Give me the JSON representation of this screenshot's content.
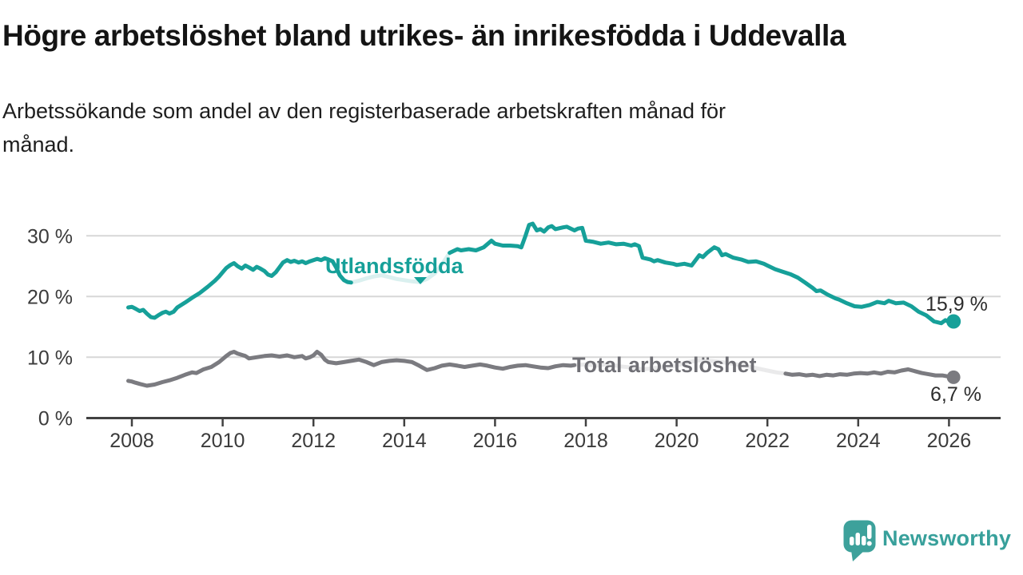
{
  "title": "Högre arbetslöshet bland utrikes- än inrikesfödda i Uddevalla",
  "subtitle": "Arbetssökande som andel av den registerbaserade arbetskraften månad för\nmånad.",
  "branding": {
    "logo_text": "Newsworthy"
  },
  "chart_data": {
    "type": "line",
    "unit": "%",
    "grid": "horizontal",
    "ylim": [
      0,
      33
    ],
    "xlim": [
      2007.9,
      2027.1
    ],
    "y_ticks": [
      {
        "value": 30,
        "label": "30 %"
      },
      {
        "value": 20,
        "label": "20 %"
      },
      {
        "value": 10,
        "label": "10 %"
      },
      {
        "value": 0,
        "label": "0 %"
      }
    ],
    "x_ticks": [
      {
        "value": 2008,
        "label": "2008"
      },
      {
        "value": 2010,
        "label": "2010"
      },
      {
        "value": 2012,
        "label": "2012"
      },
      {
        "value": 2014,
        "label": "2014"
      },
      {
        "value": 2016,
        "label": "2016"
      },
      {
        "value": 2018,
        "label": "2018"
      },
      {
        "value": 2020,
        "label": "2020"
      },
      {
        "value": 2022,
        "label": "2022"
      },
      {
        "value": 2024,
        "label": "2024"
      },
      {
        "value": 2026,
        "label": "2026"
      }
    ],
    "series": [
      {
        "name": "Utlandsfödda",
        "color": "#16a099",
        "end_label": "15,9 %",
        "end_value": 15.9,
        "dot_radius": 9,
        "label_gap_years": [
          2012.85,
          2015.0
        ],
        "points": [
          [
            2007.92,
            18.2
          ],
          [
            2008.0,
            18.3
          ],
          [
            2008.08,
            18.0
          ],
          [
            2008.17,
            17.6
          ],
          [
            2008.25,
            17.8
          ],
          [
            2008.33,
            17.2
          ],
          [
            2008.42,
            16.6
          ],
          [
            2008.5,
            16.5
          ],
          [
            2008.58,
            16.9
          ],
          [
            2008.67,
            17.3
          ],
          [
            2008.75,
            17.5
          ],
          [
            2008.83,
            17.2
          ],
          [
            2008.92,
            17.5
          ],
          [
            2009.0,
            18.2
          ],
          [
            2009.17,
            19.0
          ],
          [
            2009.33,
            19.8
          ],
          [
            2009.5,
            20.6
          ],
          [
            2009.67,
            21.6
          ],
          [
            2009.83,
            22.6
          ],
          [
            2009.92,
            23.3
          ],
          [
            2010.0,
            24.0
          ],
          [
            2010.08,
            24.7
          ],
          [
            2010.17,
            25.2
          ],
          [
            2010.25,
            25.5
          ],
          [
            2010.33,
            25.0
          ],
          [
            2010.42,
            24.6
          ],
          [
            2010.5,
            25.1
          ],
          [
            2010.58,
            24.8
          ],
          [
            2010.67,
            24.4
          ],
          [
            2010.75,
            24.9
          ],
          [
            2010.83,
            24.6
          ],
          [
            2010.92,
            24.2
          ],
          [
            2011.0,
            23.6
          ],
          [
            2011.08,
            23.4
          ],
          [
            2011.17,
            24.0
          ],
          [
            2011.25,
            24.8
          ],
          [
            2011.33,
            25.6
          ],
          [
            2011.42,
            26.0
          ],
          [
            2011.5,
            25.7
          ],
          [
            2011.58,
            25.9
          ],
          [
            2011.67,
            25.6
          ],
          [
            2011.75,
            25.8
          ],
          [
            2011.83,
            25.5
          ],
          [
            2011.92,
            25.8
          ],
          [
            2012.0,
            26.0
          ],
          [
            2012.08,
            26.2
          ],
          [
            2012.17,
            26.0
          ],
          [
            2012.25,
            26.3
          ],
          [
            2012.33,
            26.1
          ],
          [
            2012.42,
            25.8
          ],
          [
            2012.5,
            24.8
          ],
          [
            2012.58,
            23.5
          ],
          [
            2012.67,
            22.7
          ],
          [
            2012.75,
            22.4
          ],
          [
            2012.83,
            22.3
          ],
          [
            2013.0,
            22.6
          ],
          [
            2013.17,
            23.0
          ],
          [
            2013.33,
            23.3
          ],
          [
            2013.5,
            23.5
          ],
          [
            2013.67,
            23.2
          ],
          [
            2013.83,
            22.9
          ],
          [
            2014.0,
            22.7
          ],
          [
            2014.17,
            22.5
          ],
          [
            2014.33,
            22.4
          ],
          [
            2014.5,
            22.9
          ],
          [
            2014.67,
            23.8
          ],
          [
            2014.83,
            25.3
          ],
          [
            2014.92,
            26.3
          ],
          [
            2015.0,
            27.2
          ],
          [
            2015.17,
            27.8
          ],
          [
            2015.25,
            27.6
          ],
          [
            2015.42,
            27.8
          ],
          [
            2015.58,
            27.6
          ],
          [
            2015.75,
            28.1
          ],
          [
            2015.92,
            29.2
          ],
          [
            2016.0,
            28.7
          ],
          [
            2016.17,
            28.4
          ],
          [
            2016.33,
            28.4
          ],
          [
            2016.5,
            28.3
          ],
          [
            2016.58,
            28.1
          ],
          [
            2016.67,
            30.0
          ],
          [
            2016.75,
            31.8
          ],
          [
            2016.83,
            32.0
          ],
          [
            2016.92,
            30.9
          ],
          [
            2017.0,
            31.1
          ],
          [
            2017.08,
            30.7
          ],
          [
            2017.17,
            31.4
          ],
          [
            2017.25,
            31.6
          ],
          [
            2017.33,
            31.1
          ],
          [
            2017.5,
            31.4
          ],
          [
            2017.58,
            31.5
          ],
          [
            2017.75,
            30.9
          ],
          [
            2017.83,
            31.2
          ],
          [
            2017.92,
            31.3
          ],
          [
            2018.0,
            29.2
          ],
          [
            2018.17,
            29.0
          ],
          [
            2018.33,
            28.7
          ],
          [
            2018.5,
            28.9
          ],
          [
            2018.67,
            28.6
          ],
          [
            2018.83,
            28.7
          ],
          [
            2019.0,
            28.4
          ],
          [
            2019.08,
            28.6
          ],
          [
            2019.17,
            28.3
          ],
          [
            2019.25,
            26.4
          ],
          [
            2019.42,
            26.1
          ],
          [
            2019.5,
            25.8
          ],
          [
            2019.58,
            26.0
          ],
          [
            2019.75,
            25.6
          ],
          [
            2019.92,
            25.4
          ],
          [
            2020.0,
            25.2
          ],
          [
            2020.17,
            25.4
          ],
          [
            2020.33,
            25.1
          ],
          [
            2020.5,
            26.8
          ],
          [
            2020.58,
            26.5
          ],
          [
            2020.67,
            27.2
          ],
          [
            2020.83,
            28.1
          ],
          [
            2020.92,
            27.8
          ],
          [
            2021.0,
            26.8
          ],
          [
            2021.08,
            27.0
          ],
          [
            2021.25,
            26.4
          ],
          [
            2021.42,
            26.1
          ],
          [
            2021.58,
            25.7
          ],
          [
            2021.75,
            25.8
          ],
          [
            2021.92,
            25.4
          ],
          [
            2022.0,
            25.1
          ],
          [
            2022.17,
            24.5
          ],
          [
            2022.33,
            24.1
          ],
          [
            2022.5,
            23.7
          ],
          [
            2022.67,
            23.1
          ],
          [
            2022.83,
            22.3
          ],
          [
            2023.0,
            21.4
          ],
          [
            2023.08,
            20.9
          ],
          [
            2023.17,
            21.0
          ],
          [
            2023.33,
            20.3
          ],
          [
            2023.5,
            19.7
          ],
          [
            2023.58,
            19.5
          ],
          [
            2023.75,
            18.9
          ],
          [
            2023.92,
            18.4
          ],
          [
            2024.08,
            18.3
          ],
          [
            2024.25,
            18.6
          ],
          [
            2024.42,
            19.1
          ],
          [
            2024.58,
            18.9
          ],
          [
            2024.67,
            19.3
          ],
          [
            2024.83,
            18.9
          ],
          [
            2025.0,
            19.0
          ],
          [
            2025.17,
            18.4
          ],
          [
            2025.33,
            17.5
          ],
          [
            2025.5,
            16.9
          ],
          [
            2025.67,
            15.9
          ],
          [
            2025.83,
            15.6
          ],
          [
            2025.92,
            16.1
          ],
          [
            2026.0,
            15.8
          ],
          [
            2026.1,
            15.9
          ]
        ]
      },
      {
        "name": "Total arbetslöshet",
        "color": "#7b7b80",
        "end_label": "6,7 %",
        "end_value": 6.7,
        "dot_radius": 8.5,
        "label_gap_years": [
          2017.76,
          2022.38
        ],
        "points": [
          [
            2007.92,
            6.1
          ],
          [
            2008.0,
            6.0
          ],
          [
            2008.08,
            5.8
          ],
          [
            2008.17,
            5.6
          ],
          [
            2008.33,
            5.3
          ],
          [
            2008.5,
            5.5
          ],
          [
            2008.67,
            5.9
          ],
          [
            2008.83,
            6.2
          ],
          [
            2009.0,
            6.6
          ],
          [
            2009.17,
            7.1
          ],
          [
            2009.33,
            7.5
          ],
          [
            2009.42,
            7.4
          ],
          [
            2009.58,
            8.0
          ],
          [
            2009.75,
            8.4
          ],
          [
            2009.92,
            9.2
          ],
          [
            2010.0,
            9.7
          ],
          [
            2010.08,
            10.2
          ],
          [
            2010.17,
            10.7
          ],
          [
            2010.25,
            10.9
          ],
          [
            2010.33,
            10.6
          ],
          [
            2010.5,
            10.2
          ],
          [
            2010.58,
            9.8
          ],
          [
            2010.75,
            10.0
          ],
          [
            2010.92,
            10.2
          ],
          [
            2011.08,
            10.3
          ],
          [
            2011.25,
            10.1
          ],
          [
            2011.42,
            10.3
          ],
          [
            2011.58,
            10.0
          ],
          [
            2011.75,
            10.2
          ],
          [
            2011.83,
            9.8
          ],
          [
            2011.92,
            10.0
          ],
          [
            2012.0,
            10.3
          ],
          [
            2012.08,
            10.9
          ],
          [
            2012.17,
            10.4
          ],
          [
            2012.25,
            9.6
          ],
          [
            2012.33,
            9.2
          ],
          [
            2012.5,
            9.0
          ],
          [
            2012.67,
            9.2
          ],
          [
            2012.83,
            9.4
          ],
          [
            2013.0,
            9.6
          ],
          [
            2013.17,
            9.2
          ],
          [
            2013.33,
            8.7
          ],
          [
            2013.5,
            9.2
          ],
          [
            2013.67,
            9.4
          ],
          [
            2013.83,
            9.5
          ],
          [
            2014.0,
            9.4
          ],
          [
            2014.17,
            9.2
          ],
          [
            2014.33,
            8.6
          ],
          [
            2014.5,
            7.9
          ],
          [
            2014.67,
            8.2
          ],
          [
            2014.83,
            8.6
          ],
          [
            2015.0,
            8.8
          ],
          [
            2015.17,
            8.6
          ],
          [
            2015.33,
            8.4
          ],
          [
            2015.5,
            8.6
          ],
          [
            2015.67,
            8.8
          ],
          [
            2015.83,
            8.6
          ],
          [
            2016.0,
            8.3
          ],
          [
            2016.17,
            8.1
          ],
          [
            2016.33,
            8.4
          ],
          [
            2016.5,
            8.6
          ],
          [
            2016.67,
            8.7
          ],
          [
            2016.83,
            8.5
          ],
          [
            2017.0,
            8.3
          ],
          [
            2017.17,
            8.2
          ],
          [
            2017.33,
            8.5
          ],
          [
            2017.5,
            8.7
          ],
          [
            2017.67,
            8.6
          ],
          [
            2017.75,
            8.7
          ],
          [
            2018.0,
            8.8
          ],
          [
            2018.25,
            8.6
          ],
          [
            2018.5,
            8.9
          ],
          [
            2018.75,
            8.5
          ],
          [
            2019.0,
            8.3
          ],
          [
            2019.25,
            8.0
          ],
          [
            2019.5,
            8.2
          ],
          [
            2019.75,
            8.4
          ],
          [
            2020.0,
            8.6
          ],
          [
            2020.25,
            9.2
          ],
          [
            2020.5,
            9.5
          ],
          [
            2020.75,
            9.4
          ],
          [
            2021.0,
            9.2
          ],
          [
            2021.25,
            8.9
          ],
          [
            2021.5,
            8.6
          ],
          [
            2021.75,
            8.2
          ],
          [
            2022.0,
            7.8
          ],
          [
            2022.2,
            7.5
          ],
          [
            2022.4,
            7.3
          ],
          [
            2022.55,
            7.1
          ],
          [
            2022.7,
            7.2
          ],
          [
            2022.85,
            7.0
          ],
          [
            2023.0,
            7.1
          ],
          [
            2023.15,
            6.9
          ],
          [
            2023.3,
            7.1
          ],
          [
            2023.45,
            7.0
          ],
          [
            2023.6,
            7.2
          ],
          [
            2023.75,
            7.1
          ],
          [
            2023.9,
            7.3
          ],
          [
            2024.05,
            7.4
          ],
          [
            2024.2,
            7.3
          ],
          [
            2024.35,
            7.5
          ],
          [
            2024.5,
            7.3
          ],
          [
            2024.65,
            7.6
          ],
          [
            2024.8,
            7.5
          ],
          [
            2024.95,
            7.8
          ],
          [
            2025.1,
            8.0
          ],
          [
            2025.25,
            7.7
          ],
          [
            2025.4,
            7.4
          ],
          [
            2025.55,
            7.2
          ],
          [
            2025.7,
            7.0
          ],
          [
            2025.85,
            7.0
          ],
          [
            2026.0,
            6.8
          ],
          [
            2026.1,
            6.7
          ]
        ]
      }
    ]
  }
}
